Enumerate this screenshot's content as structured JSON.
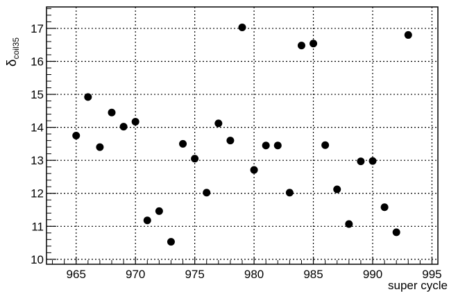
{
  "chart_data": {
    "type": "scatter",
    "title": "",
    "xlabel": "super cycle",
    "ylabel_main": "δ",
    "ylabel_sub": "coil35",
    "xlim": [
      962.5,
      995.5
    ],
    "ylim": [
      9.85,
      17.65
    ],
    "grid": true,
    "grid_style": "dotted",
    "x_ticks": [
      965,
      970,
      975,
      980,
      985,
      990,
      995
    ],
    "y_ticks": [
      10,
      11,
      12,
      13,
      14,
      15,
      16,
      17
    ],
    "marker_color": "#000000",
    "series": [
      {
        "x": [
          965,
          966,
          967,
          968,
          969,
          970,
          971,
          972,
          973,
          974,
          975,
          976,
          977,
          978,
          979,
          980,
          981,
          982,
          983,
          984,
          985,
          986,
          987,
          988,
          989,
          990,
          991,
          992,
          993
        ],
        "y": [
          13.75,
          14.92,
          13.4,
          14.45,
          14.02,
          14.17,
          11.18,
          11.46,
          10.53,
          13.5,
          13.05,
          12.02,
          14.12,
          13.6,
          17.03,
          12.71,
          13.45,
          13.45,
          12.02,
          16.48,
          16.54,
          13.46,
          12.12,
          11.07,
          12.97,
          12.98,
          11.58,
          10.82,
          16.8
        ]
      }
    ]
  }
}
